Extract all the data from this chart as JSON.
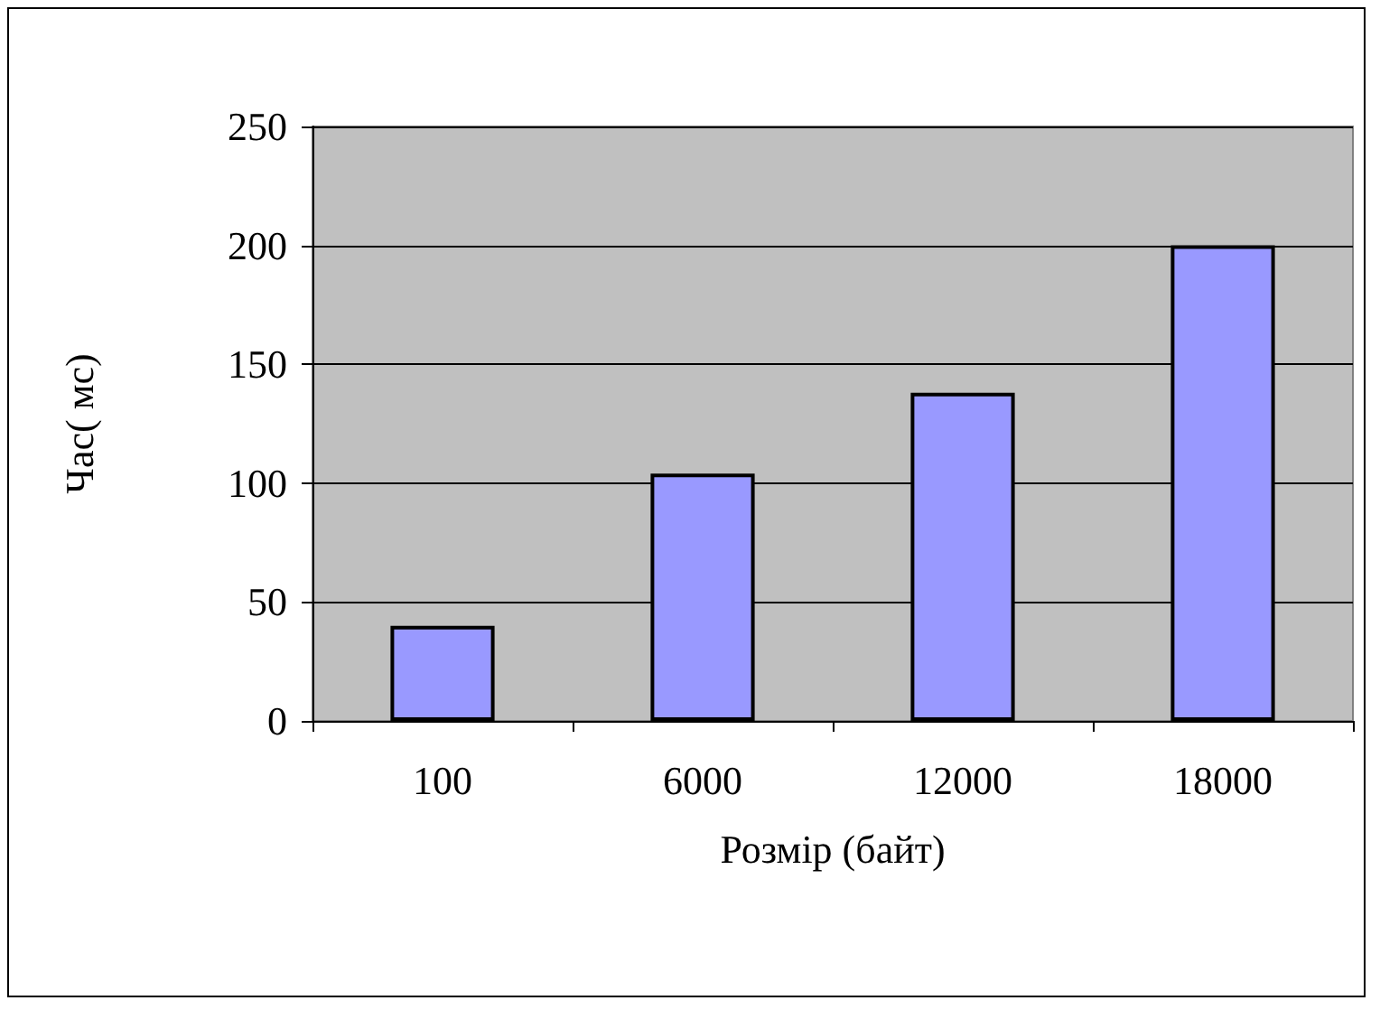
{
  "chart_data": {
    "type": "bar",
    "xlabel": "Розмір (байт)",
    "ylabel": "Час( мс)",
    "categories": [
      "100",
      "6000",
      "12000",
      "18000"
    ],
    "values": [
      40,
      104,
      138,
      200
    ],
    "color": "#9999ff",
    "ylim": [
      0,
      250
    ],
    "yticks": [
      0,
      50,
      100,
      150,
      200,
      250
    ],
    "grid": "y"
  }
}
